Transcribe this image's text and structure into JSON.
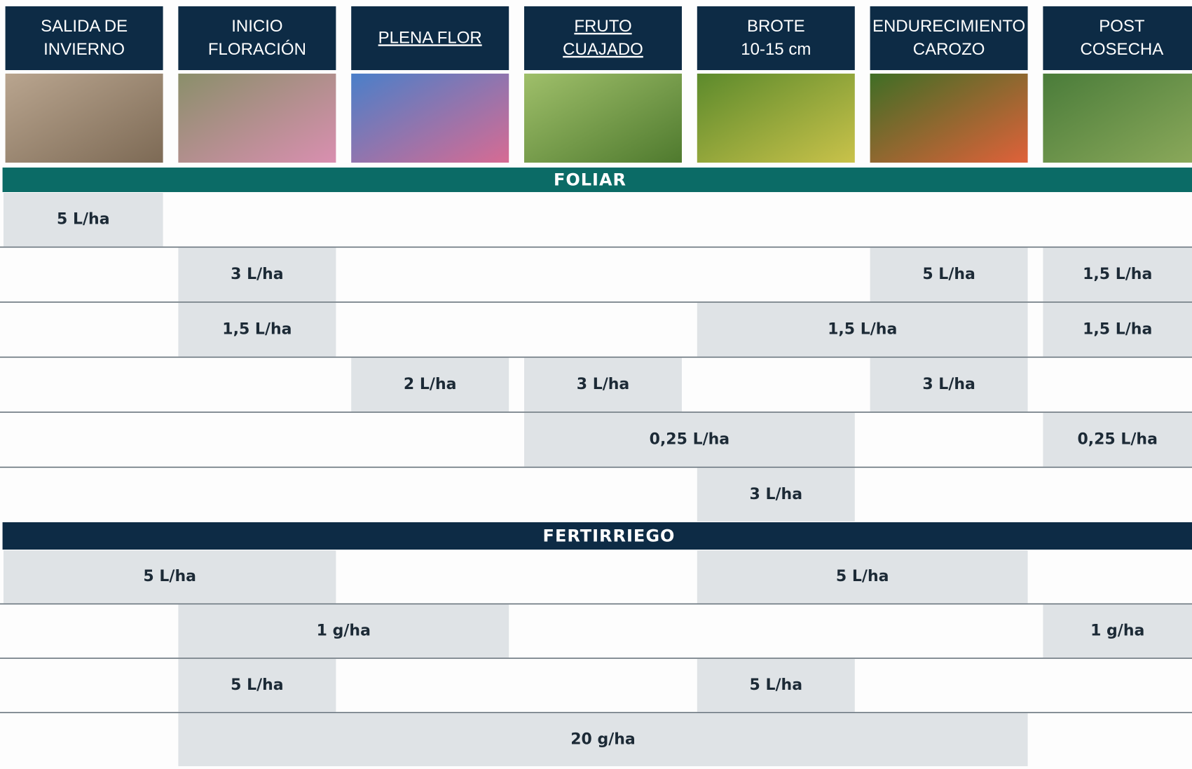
{
  "stages": [
    {
      "lines": [
        "SALIDA DE",
        "INVIERNO"
      ]
    },
    {
      "lines": [
        "INICIO",
        "FLORACIÓN"
      ]
    },
    {
      "lines": [
        "PLENA FLOR"
      ],
      "underlined": true
    },
    {
      "lines": [
        "FRUTO",
        "CUAJADO"
      ],
      "underlined": true
    },
    {
      "lines": [
        "BROTE",
        "10-15 cm"
      ]
    },
    {
      "lines": [
        "ENDURECIMIENTO",
        "CAROZO"
      ]
    },
    {
      "lines": [
        "POST",
        "COSECHA"
      ]
    }
  ],
  "sections": [
    {
      "title": "FOLIAR",
      "color": "#0b6b66",
      "rows": [
        [
          {
            "text": "5 L/ha",
            "colspan": 1
          },
          null,
          null,
          null,
          null,
          null,
          null
        ],
        [
          null,
          {
            "text": "3 L/ha",
            "colspan": 1
          },
          null,
          null,
          null,
          {
            "text": "5 L/ha",
            "colspan": 1
          },
          {
            "text": "1,5 L/ha",
            "colspan": 1
          }
        ],
        [
          null,
          {
            "text": "1,5 L/ha",
            "colspan": 1
          },
          null,
          null,
          {
            "text": "1,5 L/ha",
            "colspan": 2
          },
          {
            "text": "1,5 L/ha",
            "colspan": 1
          }
        ],
        [
          null,
          null,
          {
            "text": "2 L/ha",
            "colspan": 1
          },
          {
            "text": "3 L/ha",
            "colspan": 1
          },
          null,
          {
            "text": "3 L/ha",
            "colspan": 1
          },
          null
        ],
        [
          null,
          null,
          null,
          {
            "text": "0,25 L/ha",
            "colspan": 2
          },
          null,
          {
            "text": "0,25 L/ha",
            "colspan": 1
          }
        ],
        [
          null,
          null,
          null,
          null,
          {
            "text": "3 L/ha",
            "colspan": 1
          },
          null,
          null
        ]
      ]
    },
    {
      "title": "FERTIRRIEGO",
      "color": "#0d2b45",
      "rows": [
        [
          {
            "text": "5 L/ha",
            "colspan": 2
          },
          null,
          null,
          {
            "text": "5 L/ha",
            "colspan": 2
          },
          null
        ],
        [
          null,
          {
            "text": "1 g/ha",
            "colspan": 2
          },
          null,
          null,
          null,
          {
            "text": "1 g/ha",
            "colspan": 1
          }
        ],
        [
          null,
          {
            "text": "5 L/ha",
            "colspan": 1
          },
          null,
          null,
          {
            "text": "5 L/ha",
            "colspan": 1
          },
          null,
          null
        ],
        [
          null,
          {
            "text": "20 g/ha",
            "colspan": 5
          },
          null
        ]
      ]
    }
  ]
}
